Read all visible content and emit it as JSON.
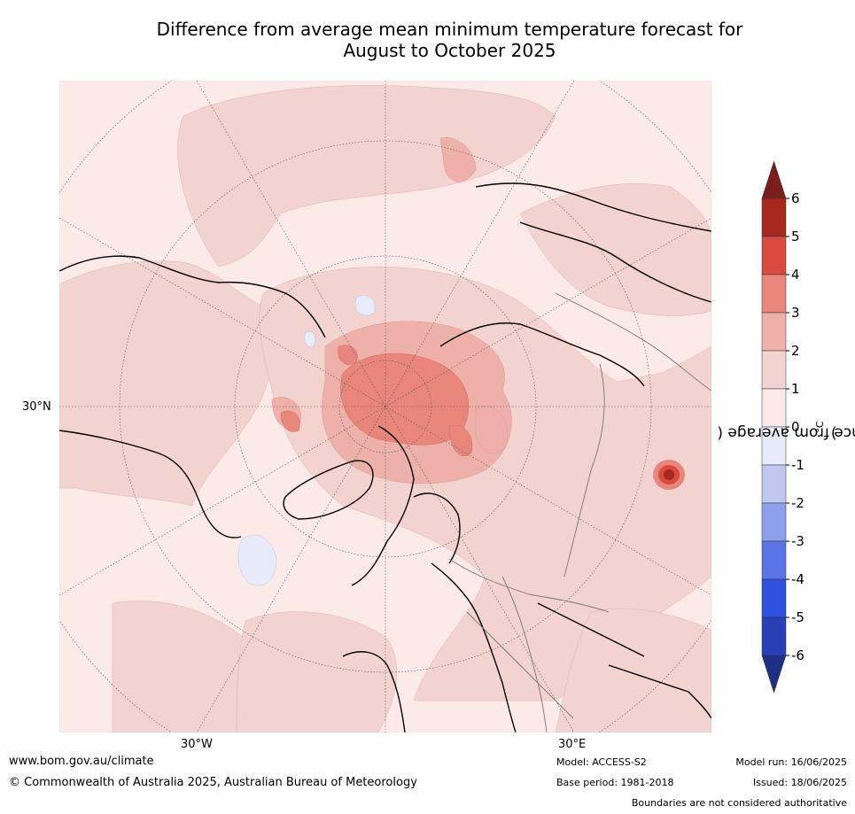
{
  "title_line1": "Difference from average mean minimum temperature forecast for",
  "title_line2": "August to October 2025",
  "map": {
    "lat_label": "30°N",
    "lon_labels": [
      "30°W",
      "30°E"
    ],
    "projection": "north polar stereographic",
    "boundaries_note": "Boundaries are not considered authoritative"
  },
  "colorbar": {
    "label": "Difference from average (°C)",
    "label_prefix": "Difference from average (",
    "label_unit": "°C",
    "label_suffix": ")",
    "ticks": [
      "6",
      "5",
      "4",
      "3",
      "2",
      "1",
      "0",
      "-1",
      "-2",
      "-3",
      "-4",
      "-5",
      "-6"
    ],
    "colors": {
      "over": "#7a1e1a",
      "5_6": "#a8271f",
      "4_5": "#d94a3f",
      "3_4": "#e8867b",
      "2_3": "#edb1aa",
      "1_2": "#f3d3cf",
      "0_1": "#fbeae7",
      "m1_0": "#e8ecfa",
      "m2_m1": "#c0c8f0",
      "m3_m2": "#8ea0ec",
      "m4_m3": "#5a74e6",
      "m5_m4": "#3050e0",
      "m6_m5": "#283fb6",
      "under": "#1e2f86"
    }
  },
  "footer": {
    "website": "www.bom.gov.au/climate",
    "copyright": "© Commonwealth of Australia 2025, Australian Bureau of Meteorology",
    "model": "Model: ACCESS-S2",
    "base_period": "Base period: 1981-2018",
    "model_run": "Model run: 16/06/2025",
    "issued": "Issued: 18/06/2025",
    "boundaries": "Boundaries are not considered authoritative"
  }
}
